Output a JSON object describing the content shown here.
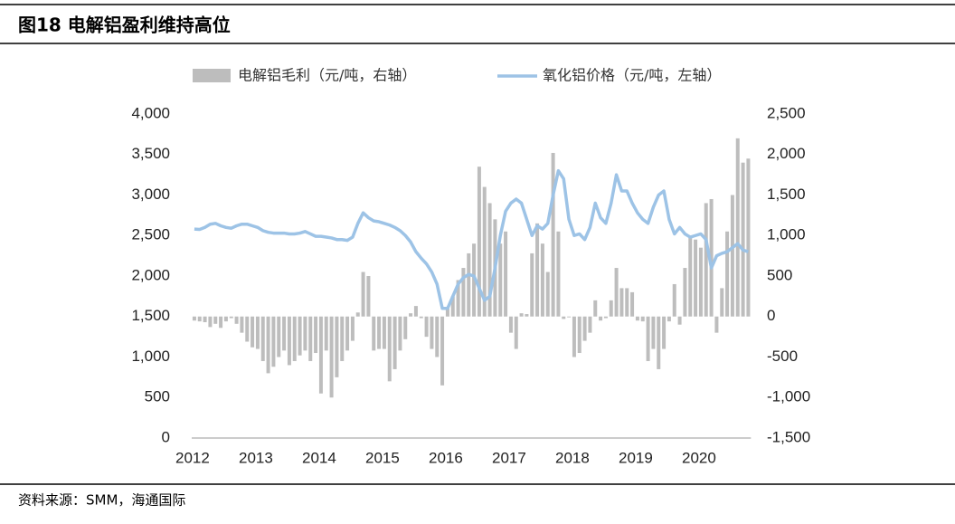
{
  "chart_data": {
    "type": "bar-line",
    "title": "图18 电解铝盈利维持高位",
    "source": "资料来源：SMM，海通国际",
    "categories": [
      "2012",
      null,
      null,
      null,
      null,
      null,
      null,
      null,
      null,
      null,
      null,
      null,
      "2013",
      null,
      null,
      null,
      null,
      null,
      null,
      null,
      null,
      null,
      null,
      null,
      "2014",
      null,
      null,
      null,
      null,
      null,
      null,
      null,
      null,
      null,
      null,
      null,
      "2015",
      null,
      null,
      null,
      null,
      null,
      null,
      null,
      null,
      null,
      null,
      null,
      "2016",
      null,
      null,
      null,
      null,
      null,
      null,
      null,
      null,
      null,
      null,
      null,
      "2017",
      null,
      null,
      null,
      null,
      null,
      null,
      null,
      null,
      null,
      null,
      null,
      "2018",
      null,
      null,
      null,
      null,
      null,
      null,
      null,
      null,
      null,
      null,
      null,
      "2019",
      null,
      null,
      null,
      null,
      null,
      null,
      null,
      null,
      null,
      null,
      null,
      "2020",
      null,
      null,
      null,
      null,
      null,
      null,
      null,
      null,
      null
    ],
    "series": [
      {
        "name": "电解铝毛利（元/吨，右轴）",
        "type": "bar",
        "axis": "y2",
        "color": "#bdbdbd",
        "values": [
          -50,
          -60,
          -70,
          -130,
          -90,
          -140,
          -60,
          -20,
          -90,
          -200,
          -310,
          -380,
          -400,
          -550,
          -700,
          -620,
          -500,
          -420,
          -600,
          -550,
          -480,
          -420,
          -550,
          -450,
          -950,
          -420,
          -1000,
          -750,
          -550,
          -420,
          -300,
          50,
          550,
          500,
          -420,
          -400,
          -400,
          -800,
          -650,
          -420,
          -280,
          40,
          130,
          -20,
          -250,
          -400,
          -500,
          -850,
          100,
          250,
          450,
          600,
          780,
          900,
          1850,
          1600,
          1400,
          1200,
          900,
          1050,
          -200,
          -400,
          40,
          30,
          780,
          1150,
          900,
          550,
          2020,
          1050,
          -30,
          -10,
          -500,
          -450,
          -300,
          -200,
          200,
          -50,
          -20,
          200,
          600,
          350,
          350,
          300,
          -50,
          -60,
          -550,
          -400,
          -650,
          -400,
          -60,
          400,
          -100,
          600,
          1000,
          950,
          850,
          1400,
          1450,
          -200,
          350,
          1050,
          1500,
          2200,
          1900,
          1950
        ]
      },
      {
        "name": "氧化铝价格（元/吨，左轴）",
        "type": "line",
        "axis": "y",
        "color": "#9dc3e6",
        "values": [
          2580,
          2575,
          2600,
          2640,
          2650,
          2620,
          2600,
          2590,
          2620,
          2640,
          2640,
          2620,
          2600,
          2560,
          2540,
          2530,
          2530,
          2530,
          2520,
          2520,
          2530,
          2550,
          2520,
          2490,
          2490,
          2480,
          2470,
          2450,
          2450,
          2440,
          2480,
          2650,
          2780,
          2720,
          2680,
          2670,
          2650,
          2630,
          2600,
          2560,
          2500,
          2420,
          2300,
          2220,
          2150,
          2050,
          1900,
          1600,
          1600,
          1750,
          1900,
          1980,
          2020,
          2000,
          1850,
          1700,
          1750,
          2100,
          2500,
          2800,
          2900,
          2950,
          2900,
          2700,
          2500,
          2620,
          2580,
          2650,
          3000,
          3300,
          3200,
          2700,
          2500,
          2520,
          2450,
          2600,
          2900,
          2720,
          2650,
          2900,
          3250,
          3050,
          3050,
          2900,
          2780,
          2700,
          2650,
          2850,
          3000,
          3050,
          2700,
          2520,
          2600,
          2520,
          2480,
          2500,
          2520,
          2450,
          2100,
          2250,
          2280,
          2300,
          2350,
          2400,
          2320,
          2300
        ]
      }
    ],
    "ylim": [
      0,
      4000
    ],
    "yticks": [
      0,
      500,
      {
        "value": 1000,
        "label": "1,000"
      },
      {
        "value": 1500,
        "label": "1,500"
      },
      {
        "value": 2000,
        "label": "2,000"
      },
      {
        "value": 2500,
        "label": "2,500"
      },
      {
        "value": 3000,
        "label": "3,000"
      },
      {
        "value": 3500,
        "label": "3,500"
      },
      {
        "value": 4000,
        "label": "4,000"
      }
    ],
    "y2lim": [
      -1500,
      2500
    ],
    "y2ticks": [
      {
        "value": -1500,
        "label": "-1,500"
      },
      {
        "value": -1000,
        "label": "-1,000"
      },
      -500,
      0,
      500,
      {
        "value": 1000,
        "label": "1,000"
      },
      {
        "value": 1500,
        "label": "1,500"
      },
      {
        "value": 2000,
        "label": "2,000"
      },
      {
        "value": 2500,
        "label": "2,500"
      }
    ]
  }
}
